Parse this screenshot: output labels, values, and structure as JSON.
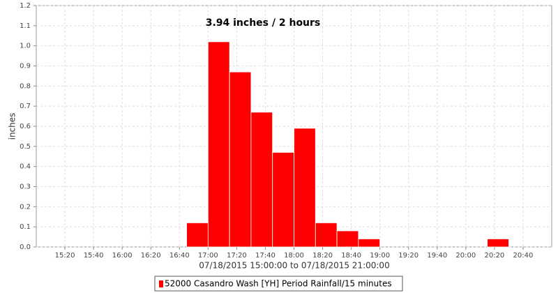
{
  "chart_data": {
    "type": "histogram",
    "annotation": "3.94 inches / 2 hours",
    "x_label": "07/18/2015 15:00:00 to 07/18/2015 21:00:00",
    "y_label": "inches",
    "bins": [
      "16:45",
      "17:00",
      "17:15",
      "17:30",
      "17:45",
      "18:00",
      "18:15",
      "18:30",
      "18:45",
      "19:00",
      "19:15",
      "19:30",
      "19:45",
      "20:00",
      "20:15",
      "20:30"
    ],
    "series": [
      {
        "name": "52000 Casandro Wash [YH] Period Rainfall/15 minutes",
        "color": "#ff0000",
        "values": [
          0.12,
          1.02,
          0.87,
          0.67,
          0.47,
          0.59,
          0.12,
          0.08,
          0.04,
          0,
          0,
          0,
          0,
          0,
          0.04
        ]
      }
    ],
    "xlim": [
      "15:00",
      "21:00"
    ],
    "xticks": [
      "15:20",
      "15:40",
      "16:00",
      "16:20",
      "16:40",
      "17:00",
      "17:20",
      "17:40",
      "18:00",
      "18:20",
      "18:40",
      "19:00",
      "19:20",
      "19:40",
      "20:00",
      "20:20",
      "20:40"
    ],
    "ylim": [
      0,
      1.2
    ],
    "yticks": [
      {
        "value": 0,
        "label": "0.0"
      },
      0.1,
      0.2,
      0.3,
      0.4,
      0.5,
      0.6,
      0.7,
      0.8,
      0.9,
      {
        "value": 1,
        "label": "1.0"
      },
      1.1,
      1.2
    ],
    "grid": true
  }
}
